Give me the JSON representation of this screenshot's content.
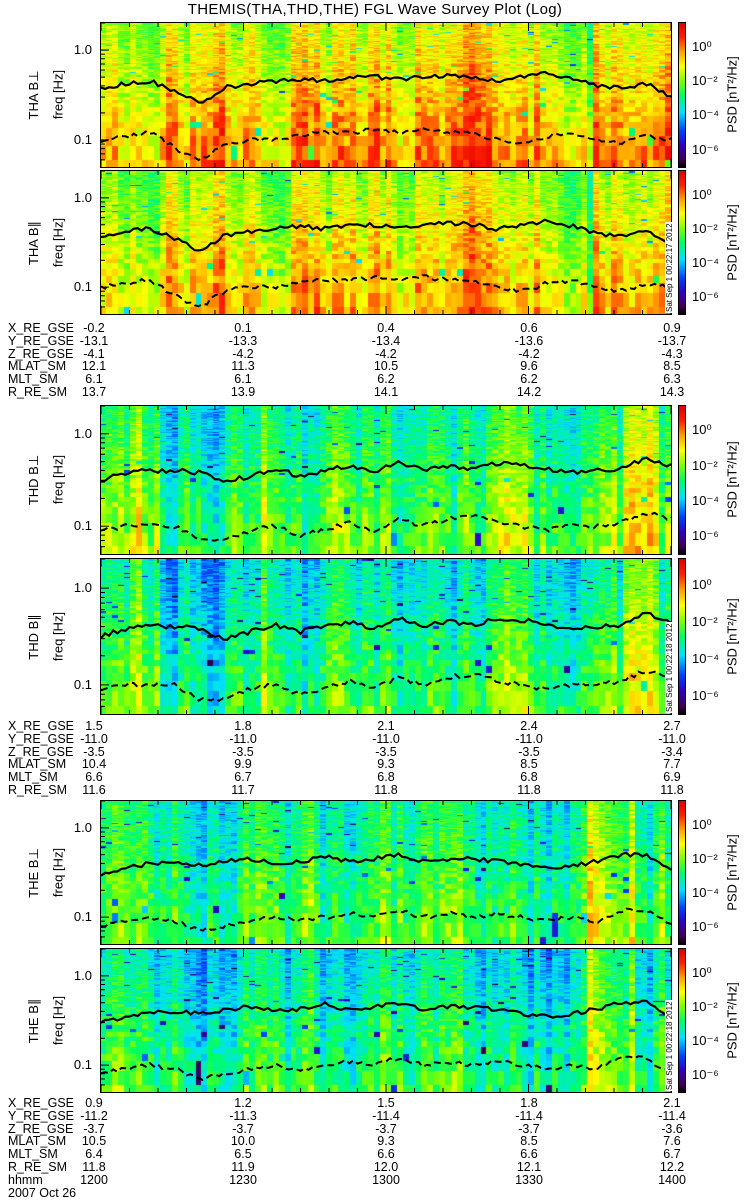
{
  "title": "THEMIS(THA,THD,THE) FGL Wave Survey Plot (Log)",
  "colors": {
    "line": "#000000",
    "frame": "#000000",
    "background": "#ffffff"
  },
  "colorbar": {
    "label": "PSD [nT²/Hz]",
    "ticks": [
      "10⁰",
      "10⁻²",
      "10⁻⁴",
      "10⁻⁶"
    ],
    "tick_exponents": [
      0,
      -2,
      -4,
      -6
    ],
    "log_range": [
      -7,
      1.5
    ]
  },
  "chart_data": {
    "type": "heatmap",
    "title": "THEMIS(THA,THD,THE) FGL Wave Survey Plot (Log)",
    "xlabel": "hhmm",
    "ylabel": "freq [Hz]",
    "ylim_hz": [
      0.05,
      2.0
    ],
    "yscale": "log",
    "ytick_labels": [
      "1.0",
      "0.1"
    ],
    "ytick_values": [
      1.0,
      0.1
    ],
    "xtick_labels": [
      "1200",
      "1230",
      "1300",
      "1330",
      "1400"
    ],
    "date": "2007 Oct 26",
    "panels": [
      {
        "probe": "THA",
        "label": "THA B⊥",
        "component": "perp",
        "mean_log_psd": 0.0,
        "high_freq_log_psd": -1.0,
        "stamp": "",
        "solid_line_hz": [
          0.38,
          0.42,
          0.45,
          0.35,
          0.25,
          0.38,
          0.42,
          0.45,
          0.48,
          0.45,
          0.5,
          0.5,
          0.48,
          0.5,
          0.52,
          0.5,
          0.45,
          0.5,
          0.55,
          0.48,
          0.4,
          0.38,
          0.42,
          0.3
        ],
        "dashed_line_hz": [
          0.1,
          0.11,
          0.12,
          0.08,
          0.06,
          0.09,
          0.1,
          0.1,
          0.11,
          0.12,
          0.12,
          0.13,
          0.12,
          0.13,
          0.12,
          0.12,
          0.1,
          0.09,
          0.11,
          0.12,
          0.1,
          0.09,
          0.11,
          0.1
        ]
      },
      {
        "probe": "THA",
        "label": "THA B∥",
        "component": "par",
        "mean_log_psd": -0.4,
        "high_freq_log_psd": -1.3,
        "stamp": "Sat Sep  1 00:22:17 2012",
        "solid_line_hz": [
          0.38,
          0.42,
          0.45,
          0.35,
          0.25,
          0.38,
          0.42,
          0.45,
          0.48,
          0.45,
          0.5,
          0.5,
          0.48,
          0.5,
          0.52,
          0.5,
          0.45,
          0.5,
          0.55,
          0.48,
          0.4,
          0.38,
          0.42,
          0.3
        ],
        "dashed_line_hz": [
          0.1,
          0.11,
          0.12,
          0.08,
          0.06,
          0.09,
          0.1,
          0.1,
          0.11,
          0.12,
          0.12,
          0.13,
          0.12,
          0.13,
          0.12,
          0.12,
          0.1,
          0.09,
          0.11,
          0.12,
          0.1,
          0.09,
          0.11,
          0.1
        ]
      },
      {
        "probe": "THD",
        "label": "THD B⊥",
        "component": "perp",
        "mean_log_psd": -2.0,
        "high_freq_log_psd": -2.8,
        "stamp": "",
        "solid_line_hz": [
          0.32,
          0.38,
          0.4,
          0.4,
          0.38,
          0.3,
          0.35,
          0.42,
          0.35,
          0.4,
          0.45,
          0.38,
          0.5,
          0.4,
          0.45,
          0.42,
          0.48,
          0.47,
          0.42,
          0.38,
          0.4,
          0.42,
          0.55,
          0.45
        ],
        "dashed_line_hz": [
          0.09,
          0.1,
          0.1,
          0.1,
          0.07,
          0.07,
          0.09,
          0.1,
          0.08,
          0.09,
          0.11,
          0.09,
          0.12,
          0.1,
          0.12,
          0.13,
          0.11,
          0.1,
          0.09,
          0.1,
          0.1,
          0.11,
          0.14,
          0.12
        ]
      },
      {
        "probe": "THD",
        "label": "THD B∥",
        "component": "par",
        "mean_log_psd": -2.3,
        "high_freq_log_psd": -3.2,
        "stamp": "Sat Sep  1 00:22:18 2012",
        "solid_line_hz": [
          0.32,
          0.38,
          0.4,
          0.4,
          0.38,
          0.3,
          0.35,
          0.42,
          0.35,
          0.4,
          0.45,
          0.38,
          0.5,
          0.4,
          0.45,
          0.42,
          0.48,
          0.47,
          0.42,
          0.38,
          0.4,
          0.42,
          0.55,
          0.45
        ],
        "dashed_line_hz": [
          0.09,
          0.1,
          0.1,
          0.1,
          0.07,
          0.07,
          0.09,
          0.1,
          0.08,
          0.09,
          0.11,
          0.09,
          0.12,
          0.1,
          0.12,
          0.13,
          0.11,
          0.1,
          0.09,
          0.1,
          0.1,
          0.11,
          0.14,
          0.12
        ]
      },
      {
        "probe": "THE",
        "label": "THE B⊥",
        "component": "perp",
        "mean_log_psd": -2.4,
        "high_freq_log_psd": -3.0,
        "stamp": "",
        "solid_line_hz": [
          0.3,
          0.35,
          0.4,
          0.4,
          0.38,
          0.42,
          0.45,
          0.4,
          0.42,
          0.48,
          0.42,
          0.45,
          0.5,
          0.42,
          0.45,
          0.45,
          0.42,
          0.38,
          0.35,
          0.38,
          0.42,
          0.5,
          0.5,
          0.35
        ],
        "dashed_line_hz": [
          0.08,
          0.09,
          0.1,
          0.09,
          0.07,
          0.08,
          0.09,
          0.1,
          0.09,
          0.1,
          0.11,
          0.1,
          0.12,
          0.1,
          0.11,
          0.1,
          0.11,
          0.1,
          0.09,
          0.1,
          0.09,
          0.12,
          0.12,
          0.08
        ]
      },
      {
        "probe": "THE",
        "label": "THE B∥",
        "component": "par",
        "mean_log_psd": -2.6,
        "high_freq_log_psd": -3.4,
        "stamp": "Sat Sep  1 00:22:18 2012",
        "solid_line_hz": [
          0.3,
          0.35,
          0.4,
          0.4,
          0.38,
          0.42,
          0.45,
          0.4,
          0.42,
          0.48,
          0.42,
          0.45,
          0.5,
          0.42,
          0.45,
          0.45,
          0.42,
          0.38,
          0.35,
          0.38,
          0.42,
          0.5,
          0.5,
          0.35
        ],
        "dashed_line_hz": [
          0.08,
          0.09,
          0.1,
          0.09,
          0.07,
          0.08,
          0.09,
          0.1,
          0.09,
          0.1,
          0.11,
          0.1,
          0.12,
          0.1,
          0.11,
          0.1,
          0.11,
          0.1,
          0.09,
          0.1,
          0.09,
          0.12,
          0.12,
          0.08
        ]
      }
    ]
  },
  "ephemeris": [
    {
      "probe": "THA",
      "rows": [
        {
          "label": "X_RE_GSE",
          "values": [
            "-0.2",
            "0.1",
            "0.4",
            "0.6",
            "0.9"
          ]
        },
        {
          "label": "Y_RE_GSE",
          "values": [
            "-13.1",
            "-13.3",
            "-13.4",
            "-13.6",
            "-13.7"
          ]
        },
        {
          "label": "Z_RE_GSE",
          "values": [
            "-4.1",
            "-4.2",
            "-4.2",
            "-4.2",
            "-4.3"
          ]
        },
        {
          "label": "MLAT_SM",
          "values": [
            "12.1",
            "11.3",
            "10.5",
            "9.6",
            "8.5"
          ]
        },
        {
          "label": "MLT_SM",
          "values": [
            "6.1",
            "6.1",
            "6.2",
            "6.2",
            "6.3"
          ]
        },
        {
          "label": "R_RE_SM",
          "values": [
            "13.7",
            "13.9",
            "14.1",
            "14.2",
            "14.3"
          ]
        }
      ]
    },
    {
      "probe": "THD",
      "rows": [
        {
          "label": "X_RE_GSE",
          "values": [
            "1.5",
            "1.8",
            "2.1",
            "2.4",
            "2.7"
          ]
        },
        {
          "label": "Y_RE_GSE",
          "values": [
            "-11.0",
            "-11.0",
            "-11.0",
            "-11.0",
            "-11.0"
          ]
        },
        {
          "label": "Z_RE_GSE",
          "values": [
            "-3.5",
            "-3.5",
            "-3.5",
            "-3.5",
            "-3.4"
          ]
        },
        {
          "label": "MLAT_SM",
          "values": [
            "10.4",
            "9.9",
            "9.3",
            "8.5",
            "7.7"
          ]
        },
        {
          "label": "MLT_SM",
          "values": [
            "6.6",
            "6.7",
            "6.8",
            "6.8",
            "6.9"
          ]
        },
        {
          "label": "R_RE_SM",
          "values": [
            "11.6",
            "11.7",
            "11.8",
            "11.8",
            "11.8"
          ]
        }
      ]
    },
    {
      "probe": "THE",
      "rows": [
        {
          "label": "X_RE_GSE",
          "values": [
            "0.9",
            "1.2",
            "1.5",
            "1.8",
            "2.1"
          ]
        },
        {
          "label": "Y_RE_GSE",
          "values": [
            "-11.2",
            "-11.3",
            "-11.4",
            "-11.4",
            "-11.4"
          ]
        },
        {
          "label": "Z_RE_GSE",
          "values": [
            "-3.7",
            "-3.7",
            "-3.7",
            "-3.7",
            "-3.6"
          ]
        },
        {
          "label": "MLAT_SM",
          "values": [
            "10.5",
            "10.0",
            "9.3",
            "8.5",
            "7.6"
          ]
        },
        {
          "label": "MLT_SM",
          "values": [
            "6.4",
            "6.5",
            "6.6",
            "6.6",
            "6.7"
          ]
        },
        {
          "label": "R_RE_SM",
          "values": [
            "11.8",
            "11.9",
            "12.0",
            "12.1",
            "12.2"
          ]
        },
        {
          "label": "hhmm",
          "values": [
            "1200",
            "1230",
            "1300",
            "1330",
            "1400"
          ]
        }
      ]
    }
  ],
  "date_label": "2007 Oct 26"
}
